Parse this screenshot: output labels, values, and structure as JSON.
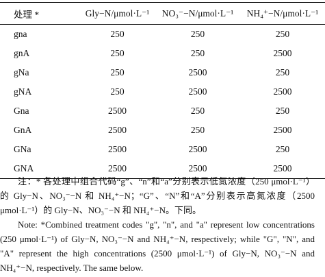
{
  "table": {
    "header": [
      "处理 *",
      "Gly−N/μmol·L⁻¹",
      "NO₃⁻−N/μmol·L⁻¹",
      "NH₄⁺−N/μmol·L⁻¹"
    ],
    "rows": [
      [
        "gna",
        250,
        250,
        250
      ],
      [
        "gnA",
        250,
        250,
        2500
      ],
      [
        "gNa",
        250,
        2500,
        250
      ],
      [
        "gNA",
        250,
        2500,
        2500
      ],
      [
        "Gna",
        2500,
        250,
        250
      ],
      [
        "GnA",
        2500,
        250,
        2500
      ],
      [
        "GNa",
        2500,
        2500,
        250
      ],
      [
        "GNA",
        2500,
        2500,
        2500
      ]
    ]
  },
  "notes": {
    "chinese": "注：* 各处理中组合代码“g”、“n”和“a”分别表示低氮浓度（250 μmol·L⁻¹）的 Gly−N、NO₃⁻−N 和 NH₄⁺−N；“G”、“N”和“A”分别表示高氮浓度（2500 μmol·L⁻¹）的 Gly−N、NO₃⁻−N 和 NH₄⁺−N。下同。",
    "english": "Note: *Combined treatment codes \"g\", \"n\", and \"a\" represent low concentrations (250 μmol·L⁻¹) of Gly−N, NO₃⁻−N and NH₄⁺−N, respectively; while \"G\", \"N\", and \"A\" represent the high concentrations (2500 μmol·L⁻¹) of Gly−N, NO₃⁻−N and NH₄⁺−N, respectively. The same below."
  }
}
